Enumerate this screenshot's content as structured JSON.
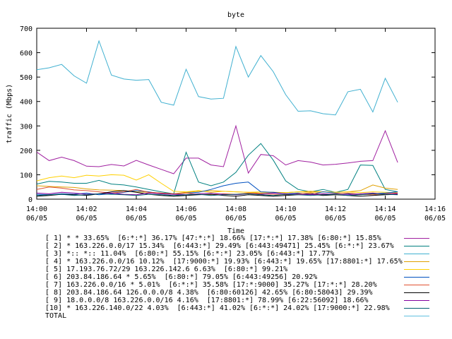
{
  "chart_data": {
    "type": "line",
    "title": "byte",
    "xlabel": "Time",
    "ylabel": "traffic (Mbps)",
    "ylim": [
      0,
      700
    ],
    "yticks": [
      "0",
      "100",
      "200",
      "300",
      "400",
      "500",
      "600",
      "700"
    ],
    "xticks": [
      {
        "time": "14:00",
        "date": "06/05"
      },
      {
        "time": "14:02",
        "date": "06/05"
      },
      {
        "time": "14:04",
        "date": "06/05"
      },
      {
        "time": "14:06",
        "date": "06/05"
      },
      {
        "time": "14:08",
        "date": "06/05"
      },
      {
        "time": "14:10",
        "date": "06/05"
      },
      {
        "time": "14:12",
        "date": "06/05"
      },
      {
        "time": "14:14",
        "date": "06/05"
      },
      {
        "time": "14:16",
        "date": "06/05"
      }
    ],
    "x": [
      "14:00",
      "14:00:30",
      "14:01",
      "14:01:30",
      "14:02",
      "14:02:30",
      "14:03",
      "14:03:30",
      "14:04",
      "14:04:30",
      "14:05",
      "14:05:30",
      "14:06",
      "14:06:30",
      "14:07",
      "14:07:30",
      "14:08",
      "14:08:30",
      "14:09",
      "14:09:30",
      "14:10",
      "14:10:30",
      "14:11",
      "14:11:30",
      "14:12",
      "14:12:30",
      "14:13",
      "14:13:30",
      "14:14",
      "14:14:30"
    ],
    "grid": false,
    "legend_placement": "bottom",
    "series": [
      {
        "name": "[ 1] * * 33.65%  [6:*:*] 36.17% [47:*:*] 18.66% [17:*:*] 17.38% [6:80:*] 15.85%",
        "color": "#a020a0",
        "values": [
          193,
          158,
          172,
          158,
          135,
          133,
          142,
          136,
          159,
          140,
          122,
          104,
          168,
          168,
          140,
          133,
          300,
          107,
          183,
          178,
          140,
          158,
          152,
          140,
          143,
          148,
          155,
          158,
          280,
          150
        ]
      },
      {
        "name": "[ 2] * 163.226.0.0/17 15.34%  [6:443:*] 29.49% [6:443:49471] 25.45% [6:*:*] 23.67%",
        "color": "#008080",
        "values": [
          62,
          73,
          70,
          65,
          65,
          77,
          62,
          58,
          50,
          40,
          30,
          22,
          192,
          70,
          55,
          70,
          110,
          180,
          228,
          160,
          75,
          40,
          30,
          40,
          28,
          40,
          140,
          138,
          40,
          30
        ]
      },
      {
        "name": "[ 3] *:: *:: 11.04%  [6:80:*] 55.15% [6:*:*] 23.05% [6:443:*] 17.77%",
        "color": "#40b0d0",
        "values": [
          530,
          538,
          552,
          505,
          475,
          648,
          508,
          492,
          487,
          490,
          397,
          385,
          532,
          420,
          410,
          413,
          625,
          500,
          588,
          522,
          428,
          360,
          362,
          350,
          345,
          440,
          450,
          357,
          495,
          397
        ]
      },
      {
        "name": "[ 4] * 163.226.0.0/16 10.12%  [17:9000:*] 19.93% [6:443:*] 19.65% [17:8801:*] 17.65%",
        "color": "#e0a000",
        "values": [
          55,
          52,
          50,
          48,
          42,
          38,
          37,
          35,
          30,
          28,
          25,
          22,
          28,
          32,
          35,
          32,
          30,
          28,
          25,
          28,
          27,
          30,
          32,
          30,
          28,
          30,
          35,
          58,
          45,
          40
        ]
      },
      {
        "name": "[ 5] 17.193.76.72/29 163.226.142.6 6.63%  [6:80:*] 99.21%",
        "color": "#ffd000",
        "values": [
          75,
          88,
          95,
          88,
          98,
          95,
          100,
          98,
          78,
          100,
          65,
          32,
          30,
          35,
          28,
          32,
          30,
          28,
          30,
          28,
          27,
          30,
          28,
          30,
          28,
          30,
          27,
          30,
          28,
          26
        ]
      },
      {
        "name": "[ 6] 203.84.186.64 * 5.65%  [6:80:*] 79.05% [6:443:49256] 20.92%",
        "color": "#0050c0",
        "values": [
          20,
          18,
          22,
          20,
          25,
          18,
          22,
          28,
          35,
          30,
          22,
          20,
          25,
          28,
          40,
          55,
          65,
          70,
          30,
          28,
          22,
          25,
          20,
          30,
          25,
          22,
          18,
          22,
          25,
          30
        ]
      },
      {
        "name": "[ 7] 163.226.0.0/16 * 5.01%  [6:*:*] 35.58% [17:*:9000] 35.27% [17:*:*] 28.20%",
        "color": "#e05030",
        "values": [
          40,
          50,
          45,
          38,
          35,
          30,
          25,
          30,
          40,
          28,
          25,
          22,
          25,
          20,
          18,
          22,
          20,
          25,
          22,
          20,
          18,
          22,
          25,
          20,
          22,
          25,
          20,
          18,
          22,
          25
        ]
      },
      {
        "name": "[ 8] 203.84.186.64 126.0.0.0/8 4.38%  [6:80:60126] 42.65% [6:80:58043] 29.39%",
        "color": "#000000",
        "values": [
          12,
          15,
          20,
          18,
          15,
          22,
          30,
          35,
          28,
          20,
          15,
          12,
          15,
          18,
          20,
          15,
          12,
          18,
          15,
          12,
          15,
          18,
          20,
          15,
          18,
          15,
          12,
          15,
          18,
          20
        ]
      },
      {
        "name": "[ 9] 18.0.0.0/8 163.226.0.0/16 4.16%  [17:8801:*] 78.99% [6:22:56092] 18.66%",
        "color": "#8000a0",
        "values": [
          25,
          22,
          28,
          25,
          20,
          22,
          25,
          20,
          18,
          25,
          22,
          20,
          18,
          22,
          25,
          20,
          18,
          22,
          20,
          25,
          22,
          20,
          18,
          22,
          20,
          18,
          22,
          25,
          20,
          22
        ]
      },
      {
        "name": "[10] * 163.226.140.0/22 4.03%  [6:443:*] 41.02% [6:*:*] 24.02% [17:9000:*] 22.98%",
        "color": "#006070",
        "values": [
          15,
          18,
          20,
          15,
          18,
          22,
          20,
          18,
          15,
          20,
          18,
          15,
          18,
          20,
          15,
          18,
          20,
          22,
          18,
          15,
          20,
          18,
          15,
          18,
          20,
          15,
          18,
          22,
          20,
          18
        ]
      },
      {
        "name": "TOTAL",
        "color": "#60c0e0",
        "values": [
          null,
          null,
          null,
          null,
          null,
          null,
          null,
          null,
          null,
          null,
          null,
          null,
          null,
          null,
          null,
          null,
          null,
          null,
          null,
          null,
          null,
          null,
          null,
          null,
          null,
          null,
          null,
          null,
          null,
          null
        ]
      }
    ]
  }
}
